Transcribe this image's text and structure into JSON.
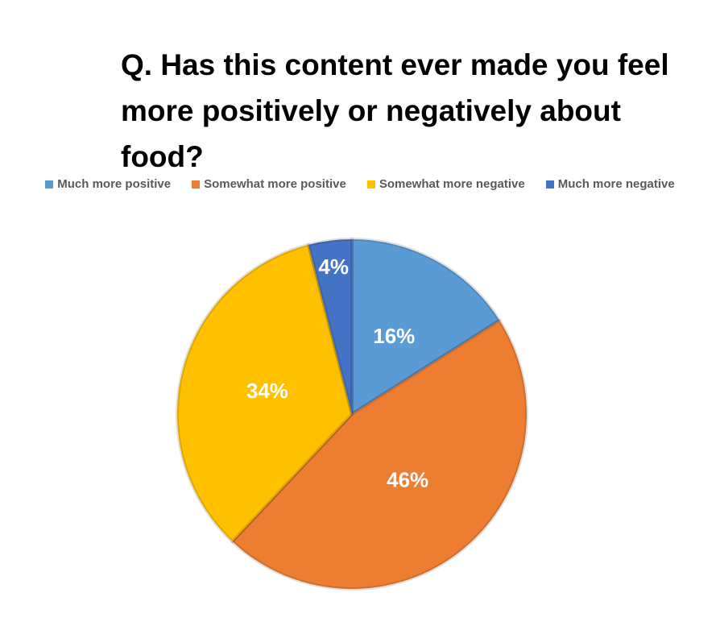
{
  "chart_data": {
    "type": "pie",
    "title": "Q. Has this content ever made you feel more positively or negatively about food?",
    "categories": [
      "Much more positive",
      "Somewhat more positive",
      "Somewhat more negative",
      "Much more negative"
    ],
    "values": [
      16,
      46,
      34,
      4
    ],
    "value_labels": [
      "16%",
      "46%",
      "34%",
      "4%"
    ],
    "colors": [
      "#5b9bd5",
      "#ed7d31",
      "#ffc000",
      "#4472c4"
    ],
    "legend": "top"
  }
}
